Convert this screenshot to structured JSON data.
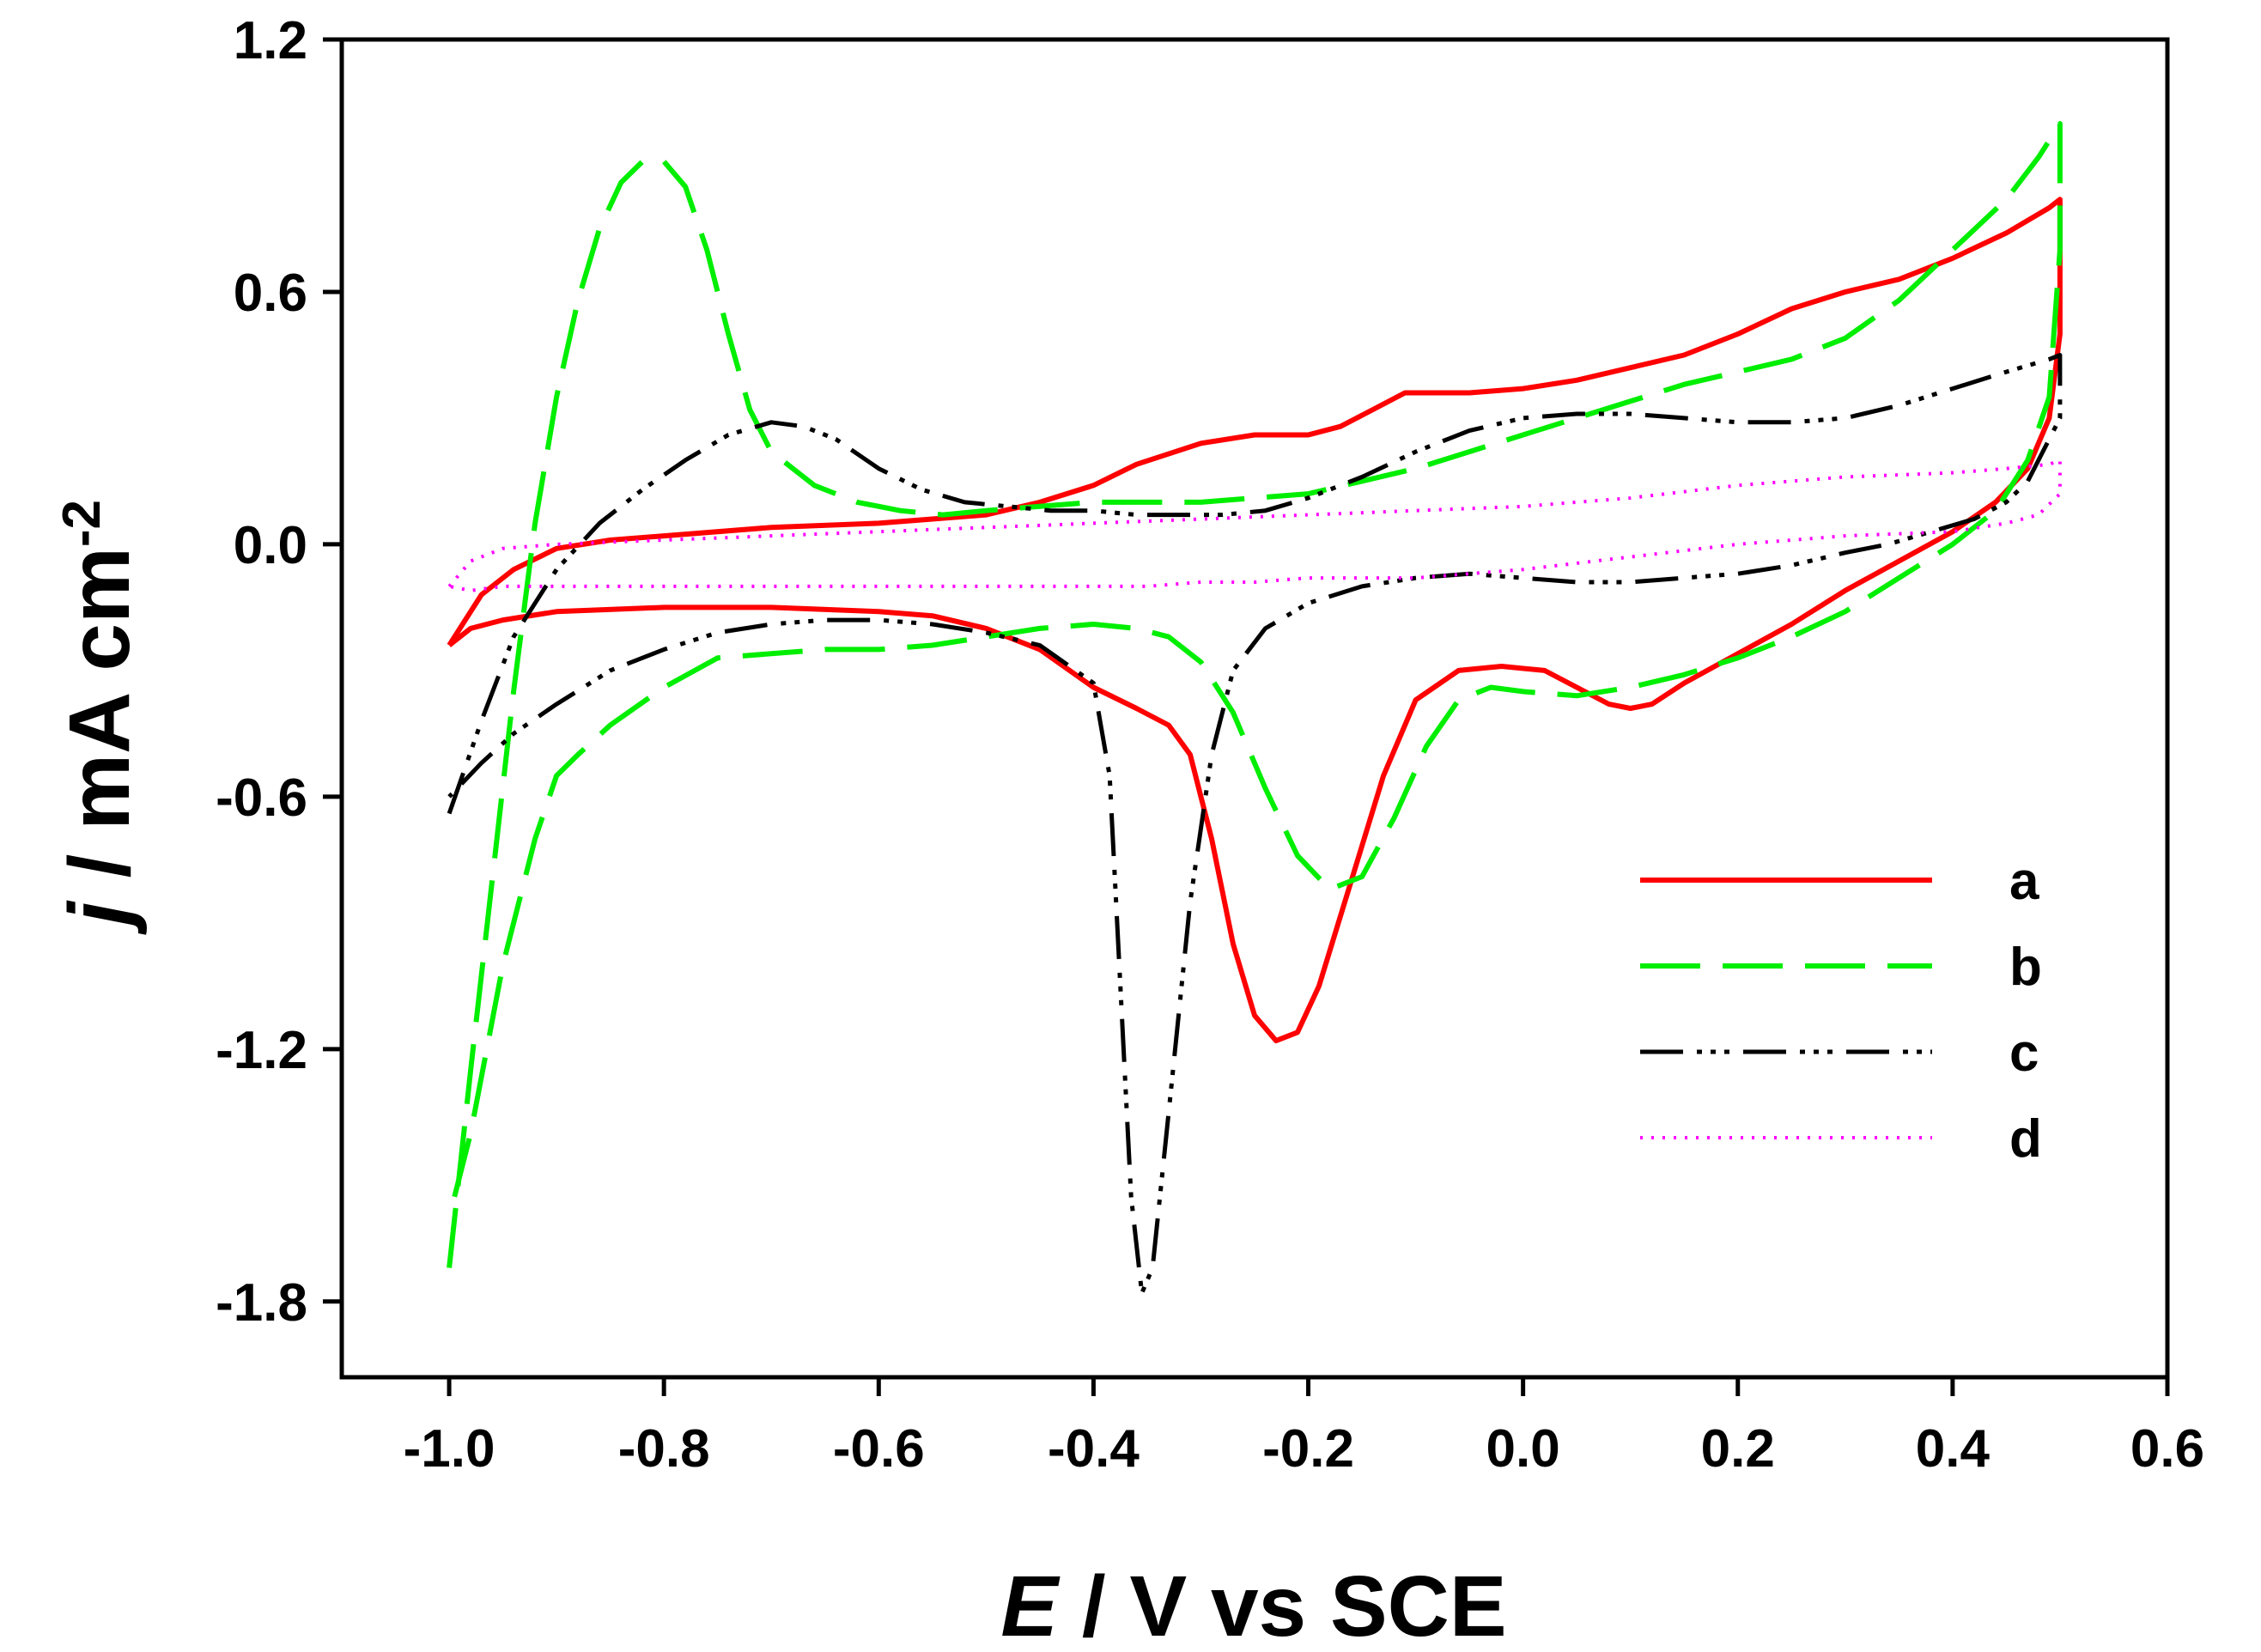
{
  "chart_data": {
    "type": "line",
    "title": "",
    "xlabel_var": "E",
    "xlabel_unit": " / V vs SCE",
    "ylabel_var": "j",
    "ylabel_unit": " / mA cm",
    "ylabel_exp": "-2",
    "xlim": [
      -1.1,
      0.6
    ],
    "ylim": [
      -1.98,
      1.2
    ],
    "xticks": [
      -1.0,
      -0.8,
      -0.6,
      -0.4,
      -0.2,
      0.0,
      0.2,
      0.4,
      0.6
    ],
    "xtick_labels": [
      "-1.0",
      "-0.8",
      "-0.6",
      "-0.4",
      "-0.2",
      "0.0",
      "0.2",
      "0.4",
      "0.6"
    ],
    "yticks": [
      1.2,
      0.6,
      0.0,
      -0.6,
      -1.2,
      -1.8
    ],
    "ytick_labels": [
      "1.2",
      "0.6",
      "0.0",
      "-0.6",
      "-1.2",
      "-1.8"
    ],
    "grid": false,
    "legend_position": "bottom-right",
    "series": [
      {
        "name": "a",
        "color": "#ff0000",
        "style": "solid",
        "x": [
          -1.0,
          -0.99,
          -0.97,
          -0.94,
          -0.9,
          -0.85,
          -0.8,
          -0.7,
          -0.6,
          -0.5,
          -0.45,
          -0.4,
          -0.36,
          -0.3,
          -0.25,
          -0.2,
          -0.17,
          -0.14,
          -0.11,
          -0.08,
          -0.05,
          0.0,
          0.05,
          0.1,
          0.15,
          0.2,
          0.25,
          0.3,
          0.35,
          0.4,
          0.45,
          0.49,
          0.5,
          0.5,
          0.49,
          0.47,
          0.44,
          0.4,
          0.35,
          0.3,
          0.25,
          0.2,
          0.15,
          0.12,
          0.1,
          0.08,
          0.05,
          0.02,
          -0.02,
          -0.06,
          -0.1,
          -0.13,
          -0.16,
          -0.19,
          -0.21,
          -0.23,
          -0.25,
          -0.27,
          -0.29,
          -0.31,
          -0.33,
          -0.36,
          -0.4,
          -0.45,
          -0.5,
          -0.55,
          -0.6,
          -0.7,
          -0.8,
          -0.9,
          -0.95,
          -0.98,
          -1.0
        ],
        "y": [
          -0.24,
          -0.2,
          -0.12,
          -0.06,
          -0.01,
          0.01,
          0.02,
          0.04,
          0.05,
          0.07,
          0.1,
          0.14,
          0.19,
          0.24,
          0.26,
          0.26,
          0.28,
          0.32,
          0.36,
          0.36,
          0.36,
          0.37,
          0.39,
          0.42,
          0.45,
          0.5,
          0.56,
          0.6,
          0.63,
          0.68,
          0.74,
          0.8,
          0.82,
          0.5,
          0.3,
          0.18,
          0.1,
          0.03,
          -0.04,
          -0.11,
          -0.19,
          -0.26,
          -0.33,
          -0.38,
          -0.39,
          -0.38,
          -0.34,
          -0.3,
          -0.29,
          -0.3,
          -0.37,
          -0.55,
          -0.8,
          -1.05,
          -1.16,
          -1.18,
          -1.12,
          -0.95,
          -0.7,
          -0.5,
          -0.43,
          -0.39,
          -0.34,
          -0.25,
          -0.2,
          -0.17,
          -0.16,
          -0.15,
          -0.15,
          -0.16,
          -0.18,
          -0.2,
          -0.24
        ]
      },
      {
        "name": "b",
        "color": "#00ee00",
        "style": "dashed",
        "x": [
          -1.0,
          -0.98,
          -0.96,
          -0.94,
          -0.92,
          -0.9,
          -0.88,
          -0.86,
          -0.84,
          -0.82,
          -0.8,
          -0.78,
          -0.76,
          -0.74,
          -0.72,
          -0.7,
          -0.66,
          -0.62,
          -0.58,
          -0.54,
          -0.5,
          -0.45,
          -0.4,
          -0.35,
          -0.3,
          -0.25,
          -0.2,
          -0.15,
          -0.1,
          -0.05,
          0.0,
          0.05,
          0.1,
          0.15,
          0.2,
          0.25,
          0.3,
          0.35,
          0.4,
          0.45,
          0.48,
          0.5,
          0.5,
          0.49,
          0.47,
          0.44,
          0.4,
          0.35,
          0.3,
          0.25,
          0.2,
          0.15,
          0.1,
          0.05,
          0.0,
          -0.03,
          -0.06,
          -0.09,
          -0.12,
          -0.15,
          -0.18,
          -0.21,
          -0.24,
          -0.27,
          -0.3,
          -0.33,
          -0.36,
          -0.4,
          -0.45,
          -0.5,
          -0.55,
          -0.6,
          -0.65,
          -0.7,
          -0.75,
          -0.8,
          -0.85,
          -0.88,
          -0.9,
          -0.92,
          -0.95,
          -0.98,
          -1.0
        ],
        "y": [
          -1.72,
          -1.25,
          -0.8,
          -0.35,
          0.05,
          0.35,
          0.58,
          0.75,
          0.86,
          0.91,
          0.91,
          0.85,
          0.7,
          0.5,
          0.32,
          0.22,
          0.14,
          0.1,
          0.08,
          0.07,
          0.08,
          0.09,
          0.1,
          0.1,
          0.1,
          0.11,
          0.12,
          0.15,
          0.18,
          0.22,
          0.26,
          0.3,
          0.34,
          0.38,
          0.41,
          0.44,
          0.49,
          0.58,
          0.7,
          0.82,
          0.92,
          1.0,
          0.7,
          0.35,
          0.2,
          0.08,
          0.0,
          -0.08,
          -0.16,
          -0.22,
          -0.27,
          -0.31,
          -0.34,
          -0.36,
          -0.35,
          -0.34,
          -0.37,
          -0.48,
          -0.65,
          -0.79,
          -0.82,
          -0.74,
          -0.58,
          -0.4,
          -0.28,
          -0.22,
          -0.2,
          -0.19,
          -0.2,
          -0.22,
          -0.24,
          -0.25,
          -0.25,
          -0.26,
          -0.27,
          -0.34,
          -0.43,
          -0.5,
          -0.55,
          -0.7,
          -1.0,
          -1.4,
          -1.6
        ]
      },
      {
        "name": "c",
        "color": "#000000",
        "style": "dash-dot-dot",
        "x": [
          -1.0,
          -0.97,
          -0.94,
          -0.9,
          -0.86,
          -0.82,
          -0.78,
          -0.74,
          -0.7,
          -0.67,
          -0.64,
          -0.6,
          -0.56,
          -0.52,
          -0.48,
          -0.44,
          -0.4,
          -0.36,
          -0.32,
          -0.28,
          -0.24,
          -0.2,
          -0.15,
          -0.1,
          -0.05,
          0.0,
          0.05,
          0.1,
          0.15,
          0.2,
          0.25,
          0.3,
          0.35,
          0.4,
          0.45,
          0.49,
          0.5,
          0.5,
          0.49,
          0.47,
          0.45,
          0.42,
          0.38,
          0.34,
          0.3,
          0.25,
          0.2,
          0.15,
          0.1,
          0.05,
          0.0,
          -0.05,
          -0.1,
          -0.15,
          -0.2,
          -0.24,
          -0.27,
          -0.29,
          -0.31,
          -0.33,
          -0.345,
          -0.355,
          -0.365,
          -0.375,
          -0.385,
          -0.4,
          -0.45,
          -0.5,
          -0.55,
          -0.6,
          -0.65,
          -0.7,
          -0.75,
          -0.8,
          -0.85,
          -0.9,
          -0.94,
          -0.97,
          -1.0
        ],
        "y": [
          -0.64,
          -0.42,
          -0.22,
          -0.06,
          0.05,
          0.13,
          0.2,
          0.26,
          0.29,
          0.28,
          0.25,
          0.18,
          0.13,
          0.1,
          0.09,
          0.08,
          0.08,
          0.07,
          0.07,
          0.07,
          0.08,
          0.11,
          0.16,
          0.22,
          0.27,
          0.3,
          0.31,
          0.31,
          0.3,
          0.29,
          0.29,
          0.3,
          0.33,
          0.37,
          0.41,
          0.44,
          0.45,
          0.3,
          0.25,
          0.15,
          0.1,
          0.06,
          0.03,
          0.0,
          -0.02,
          -0.05,
          -0.07,
          -0.08,
          -0.09,
          -0.09,
          -0.08,
          -0.07,
          -0.08,
          -0.1,
          -0.14,
          -0.2,
          -0.3,
          -0.5,
          -0.85,
          -1.35,
          -1.72,
          -1.78,
          -1.55,
          -1.05,
          -0.55,
          -0.33,
          -0.24,
          -0.21,
          -0.19,
          -0.18,
          -0.18,
          -0.19,
          -0.21,
          -0.25,
          -0.3,
          -0.38,
          -0.45,
          -0.52,
          -0.6
        ]
      },
      {
        "name": "d",
        "color": "#ff00ff",
        "style": "dotted",
        "x": [
          -1.0,
          -0.98,
          -0.95,
          -0.9,
          -0.8,
          -0.7,
          -0.6,
          -0.5,
          -0.4,
          -0.3,
          -0.2,
          -0.1,
          0.0,
          0.1,
          0.2,
          0.3,
          0.4,
          0.45,
          0.49,
          0.5,
          0.5,
          0.48,
          0.45,
          0.4,
          0.3,
          0.2,
          0.1,
          0.0,
          -0.1,
          -0.2,
          -0.25,
          -0.3,
          -0.35,
          -0.4,
          -0.5,
          -0.6,
          -0.7,
          -0.8,
          -0.9,
          -0.95,
          -0.98,
          -1.0
        ],
        "y": [
          -0.1,
          -0.04,
          -0.01,
          0.0,
          0.01,
          0.02,
          0.03,
          0.04,
          0.05,
          0.06,
          0.07,
          0.08,
          0.09,
          0.11,
          0.14,
          0.16,
          0.17,
          0.18,
          0.19,
          0.2,
          0.12,
          0.07,
          0.05,
          0.03,
          0.02,
          0.0,
          -0.03,
          -0.06,
          -0.08,
          -0.08,
          -0.09,
          -0.09,
          -0.1,
          -0.1,
          -0.1,
          -0.1,
          -0.1,
          -0.1,
          -0.1,
          -0.1,
          -0.11,
          -0.1
        ]
      }
    ]
  }
}
